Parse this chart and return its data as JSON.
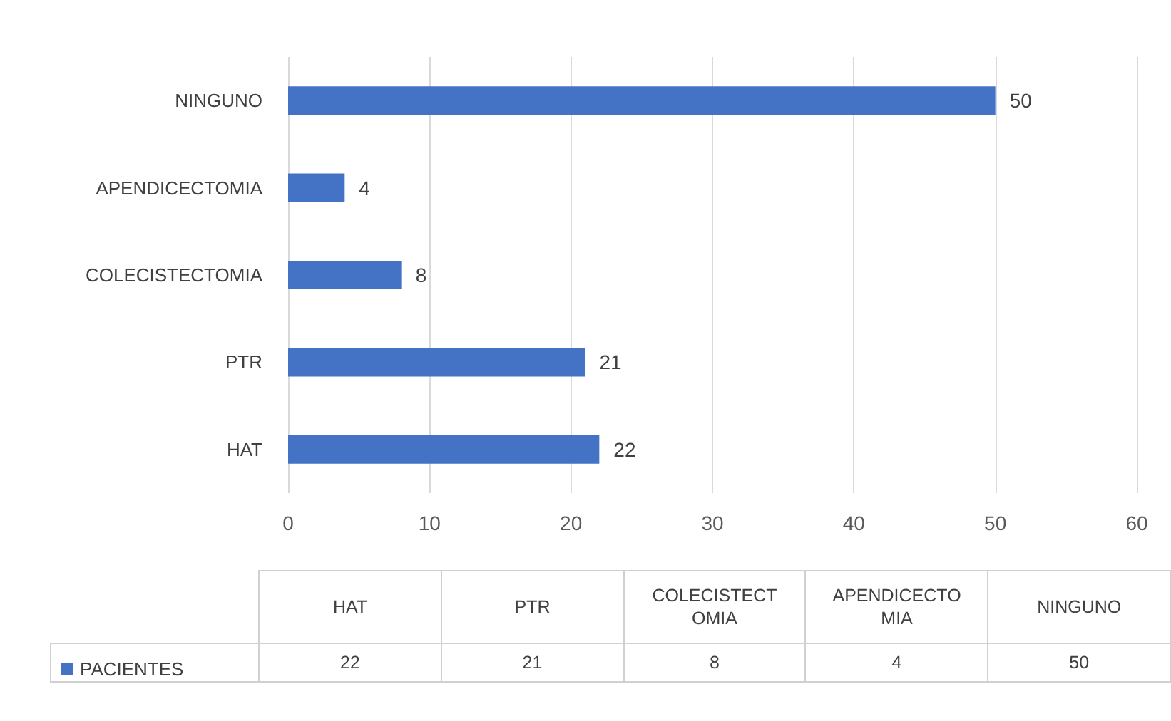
{
  "chart_data": {
    "type": "bar",
    "orientation": "horizontal",
    "categories": [
      "NINGUNO",
      "APENDICECTOMIA",
      "COLECISTECTOMIA",
      "PTR",
      "HAT"
    ],
    "series": [
      {
        "name": "PACIENTES",
        "color": "#4472c4",
        "values": [
          50,
          4,
          8,
          21,
          22
        ],
        "value_labels": [
          "50",
          "4",
          "8",
          "21",
          "22"
        ]
      }
    ],
    "xlim": [
      0,
      60
    ],
    "xticks": [
      0,
      10,
      20,
      30,
      40,
      50,
      60
    ],
    "grid": "x",
    "legend": "bottom"
  }
}
